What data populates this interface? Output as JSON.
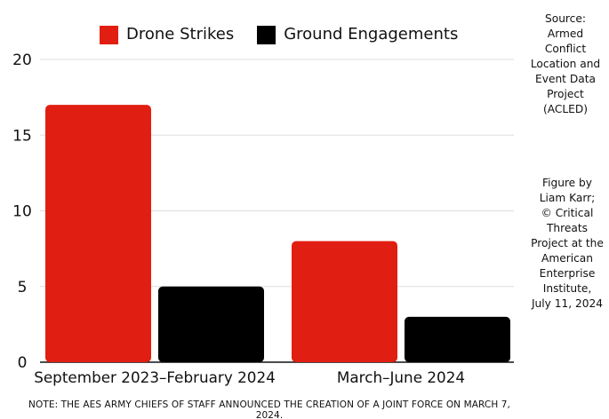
{
  "chart_data": {
    "type": "bar",
    "categories": [
      "September 2023–February 2024",
      "March–June 2024"
    ],
    "series": [
      {
        "name": "Drone Strikes",
        "values": [
          17,
          8
        ],
        "color": "#e11e12"
      },
      {
        "name": "Ground Engagements",
        "values": [
          5,
          3
        ],
        "color": "#000000"
      }
    ],
    "ylim": [
      0,
      20
    ],
    "yticks": [
      0,
      5,
      10,
      15,
      20
    ],
    "grid": true,
    "legend_position": "top-center",
    "source_note": "Source:\nArmed\nConflict\nLocation and\nEvent Data\nProject\n(ACLED)",
    "credit_note": "Figure by\nLiam Karr;\n© Critical\nThreats\nProject at the\nAmerican\nEnterprise\nInstitute,\nJuly 11, 2024",
    "footnote": "NOTE: THE AES ARMY CHIEFS OF STAFF ANNOUNCED THE CREATION OF A JOINT FORCE ON MARCH 7, 2024."
  }
}
